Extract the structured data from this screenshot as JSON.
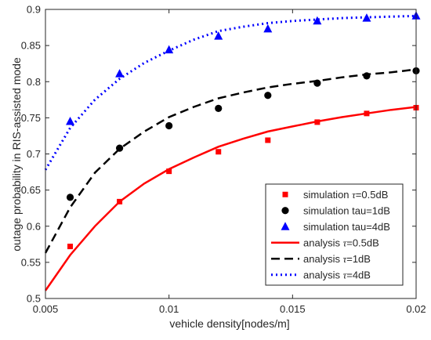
{
  "chart_data": {
    "type": "line",
    "title": "",
    "xlabel": "vehicle density[nodes/m]",
    "ylabel": "outage probability in RIS-assisted mode",
    "xlim": [
      0.005,
      0.02
    ],
    "ylim": [
      0.5,
      0.9
    ],
    "xticks": [
      0.005,
      0.01,
      0.015,
      0.02
    ],
    "xtick_labels": [
      "0.005",
      "0.01",
      "0.015",
      "0.02"
    ],
    "yticks": [
      0.5,
      0.55,
      0.6,
      0.65,
      0.7,
      0.75,
      0.8,
      0.85,
      0.9
    ],
    "ytick_labels": [
      "0.5",
      "0.55",
      "0.6",
      "0.65",
      "0.7",
      "0.75",
      "0.8",
      "0.85",
      "0.9"
    ],
    "grid": false,
    "legend_position": "bottom-right",
    "series": [
      {
        "name": "simulation τ=0.5dB",
        "legend_prefix": "simulation ",
        "legend_tau": "τ",
        "legend_suffix": "=0.5dB",
        "kind": "marker",
        "marker": "square",
        "color": "#ff0000",
        "x": [
          0.006,
          0.008,
          0.01,
          0.012,
          0.014,
          0.016,
          0.018,
          0.02
        ],
        "y": [
          0.572,
          0.634,
          0.676,
          0.703,
          0.719,
          0.744,
          0.756,
          0.764
        ]
      },
      {
        "name": "simulation tau=1dB",
        "legend_prefix": "simulation tau=1dB",
        "legend_tau": "",
        "legend_suffix": "",
        "kind": "marker",
        "marker": "circle",
        "color": "#000000",
        "x": [
          0.006,
          0.008,
          0.01,
          0.012,
          0.014,
          0.016,
          0.018,
          0.02
        ],
        "y": [
          0.64,
          0.708,
          0.739,
          0.763,
          0.781,
          0.798,
          0.808,
          0.815
        ]
      },
      {
        "name": "simulation tau=4dB",
        "legend_prefix": "simulation tau=4dB",
        "legend_tau": "",
        "legend_suffix": "",
        "kind": "marker",
        "marker": "triangle",
        "color": "#0000ff",
        "x": [
          0.006,
          0.008,
          0.01,
          0.012,
          0.014,
          0.016,
          0.018,
          0.02
        ],
        "y": [
          0.745,
          0.811,
          0.844,
          0.863,
          0.873,
          0.884,
          0.888,
          0.891
        ]
      },
      {
        "name": "analysis τ=0.5dB",
        "legend_prefix": "analysis ",
        "legend_tau": "τ",
        "legend_suffix": "=0.5dB",
        "kind": "line",
        "dash": "",
        "width": 2.5,
        "color": "#ff0000",
        "x": [
          0.005,
          0.006,
          0.007,
          0.008,
          0.009,
          0.01,
          0.011,
          0.012,
          0.013,
          0.014,
          0.015,
          0.016,
          0.017,
          0.018,
          0.019,
          0.02
        ],
        "y": [
          0.511,
          0.56,
          0.6,
          0.634,
          0.659,
          0.679,
          0.695,
          0.71,
          0.721,
          0.731,
          0.738,
          0.745,
          0.751,
          0.756,
          0.761,
          0.765
        ]
      },
      {
        "name": "analysis τ=1dB",
        "legend_prefix": "analysis ",
        "legend_tau": "τ",
        "legend_suffix": "=1dB",
        "kind": "line",
        "dash": "11,6",
        "width": 2.5,
        "color": "#000000",
        "x": [
          0.005,
          0.006,
          0.007,
          0.008,
          0.009,
          0.01,
          0.011,
          0.012,
          0.013,
          0.014,
          0.015,
          0.016,
          0.017,
          0.018,
          0.019,
          0.02
        ],
        "y": [
          0.563,
          0.626,
          0.674,
          0.707,
          0.731,
          0.751,
          0.765,
          0.777,
          0.785,
          0.792,
          0.797,
          0.801,
          0.806,
          0.81,
          0.813,
          0.817
        ]
      },
      {
        "name": "analysis τ=4dB",
        "legend_prefix": "analysis ",
        "legend_tau": "τ",
        "legend_suffix": "=4dB",
        "kind": "line",
        "dash": "2,4",
        "width": 3,
        "color": "#0000ff",
        "x": [
          0.005,
          0.006,
          0.007,
          0.008,
          0.009,
          0.01,
          0.011,
          0.012,
          0.013,
          0.014,
          0.015,
          0.016,
          0.017,
          0.018,
          0.019,
          0.02
        ],
        "y": [
          0.678,
          0.736,
          0.775,
          0.804,
          0.826,
          0.843,
          0.858,
          0.87,
          0.876,
          0.881,
          0.884,
          0.886,
          0.888,
          0.889,
          0.89,
          0.891
        ]
      }
    ]
  }
}
